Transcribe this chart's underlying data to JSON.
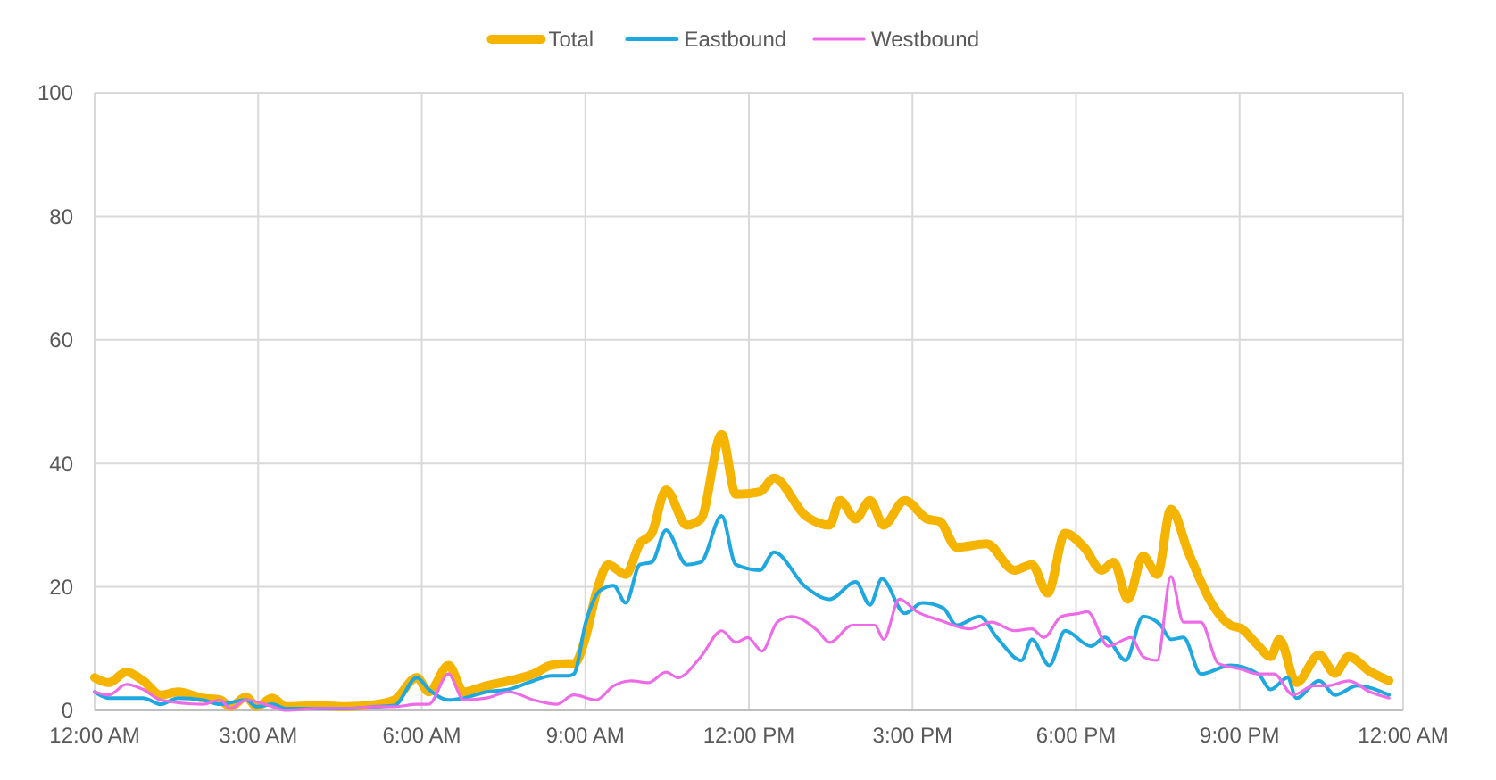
{
  "chart_data": {
    "type": "line",
    "xlim": [
      0,
      24
    ],
    "ylim": [
      0,
      100
    ],
    "yticks": [
      0,
      20,
      40,
      60,
      80,
      100
    ],
    "xticks": [
      {
        "value": 0,
        "label": "12:00 AM"
      },
      {
        "value": 3,
        "label": "3:00 AM"
      },
      {
        "value": 6,
        "label": "6:00 AM"
      },
      {
        "value": 9,
        "label": "9:00 AM"
      },
      {
        "value": 12,
        "label": "12:00 PM"
      },
      {
        "value": 15,
        "label": "3:00 PM"
      },
      {
        "value": 18,
        "label": "6:00 PM"
      },
      {
        "value": 21,
        "label": "9:00 PM"
      },
      {
        "value": 24,
        "label": "12:00 AM"
      }
    ],
    "grid": true,
    "legend": "top",
    "line_style": "solid",
    "series": [
      {
        "name": "Total",
        "color": "#f5b400",
        "x": [
          0,
          0.26,
          0.58,
          0.89,
          1.21,
          1.53,
          1.98,
          2.3,
          2.49,
          2.78,
          2.97,
          3.26,
          3.51,
          4.09,
          4.63,
          5.18,
          5.5,
          5.91,
          6.13,
          6.49,
          6.77,
          7.19,
          7.6,
          8.05,
          8.37,
          8.69,
          8.79,
          9.01,
          9.2,
          9.42,
          9.74,
          10,
          10.22,
          10.48,
          10.86,
          11.12,
          11.5,
          11.76,
          12.2,
          12.46,
          13.04,
          13.48,
          13.67,
          13.96,
          14.22,
          14.47,
          14.86,
          15.27,
          15.5,
          15.81,
          16.36,
          16.87,
          17.19,
          17.48,
          17.8,
          18.15,
          18.47,
          18.69,
          18.95,
          19.23,
          19.49,
          19.74,
          20.06,
          20.51,
          20.83,
          21.02,
          21.34,
          21.57,
          21.73,
          22.04,
          22.46,
          22.75,
          23,
          23.39,
          23.74
        ],
        "values": [
          5.3,
          4.5,
          6.2,
          4.8,
          2.5,
          3,
          2,
          1.7,
          0.6,
          2.2,
          0.6,
          2,
          0.6,
          0.8,
          0.6,
          1,
          1.7,
          5.3,
          3,
          7.3,
          3,
          4,
          4.8,
          5.9,
          7.3,
          7.6,
          7.5,
          12,
          19,
          23.6,
          22,
          27,
          28.7,
          35.7,
          30,
          31,
          44.7,
          35,
          35.4,
          37.6,
          31.5,
          30,
          34,
          31,
          34,
          30,
          34,
          31,
          30.6,
          26.4,
          27,
          22.7,
          23.6,
          19,
          28.7,
          26.4,
          22.7,
          24,
          18,
          25,
          22,
          32.6,
          25.6,
          17,
          13.8,
          13.3,
          10.5,
          8.7,
          11.5,
          4.5,
          9,
          6,
          8.7,
          6.3,
          4.8
        ]
      },
      {
        "name": "Eastbound",
        "color": "#1fa8e0",
        "x": [
          0,
          0.26,
          0.89,
          1.21,
          1.53,
          1.98,
          2.3,
          2.78,
          2.97,
          3.26,
          3.51,
          4.09,
          4.63,
          5.18,
          5.5,
          5.91,
          6.13,
          6.49,
          6.77,
          7.19,
          7.6,
          8.05,
          8.37,
          8.69,
          8.79,
          9.01,
          9.27,
          9.52,
          9.74,
          10,
          10.22,
          10.48,
          10.86,
          11.12,
          11.5,
          11.76,
          12.2,
          12.46,
          13.04,
          13.48,
          13.96,
          14.22,
          14.44,
          14.86,
          15.18,
          15.56,
          15.81,
          16.23,
          16.55,
          17,
          17.19,
          17.51,
          17.8,
          18.27,
          18.53,
          18.91,
          19.23,
          19.55,
          19.74,
          19.97,
          20.29,
          20.83,
          21.34,
          21.57,
          21.88,
          22.04,
          22.46,
          22.75,
          23.16,
          23.74
        ],
        "values": [
          3,
          2,
          2,
          1,
          2,
          1.7,
          1,
          1.7,
          0.6,
          1,
          0.3,
          0.3,
          0.3,
          0.6,
          0.8,
          5.3,
          3.4,
          1.7,
          2,
          3,
          3.4,
          4.8,
          5.6,
          5.6,
          5.9,
          14.3,
          19.4,
          20.2,
          17.4,
          23.6,
          24,
          29.2,
          23.6,
          24,
          31.5,
          23.6,
          22.7,
          25.6,
          20,
          18,
          20.8,
          17.1,
          21.3,
          15.7,
          17.4,
          16.6,
          13.8,
          15.2,
          11.8,
          8.1,
          11.5,
          7.3,
          12.9,
          10.4,
          11.8,
          8.1,
          15.2,
          13.8,
          11.5,
          11.8,
          5.9,
          7.3,
          5.9,
          3.4,
          5.3,
          2,
          4.8,
          2.5,
          4,
          2.5
        ]
      },
      {
        "name": "Westbound",
        "color": "#ee6be8",
        "x": [
          0,
          0.26,
          0.58,
          0.89,
          1.21,
          1.98,
          2.3,
          2.49,
          2.78,
          3.26,
          3.51,
          4.09,
          4.63,
          5.18,
          5.5,
          5.91,
          6.13,
          6.49,
          6.77,
          7.19,
          7.6,
          8.05,
          8.47,
          8.79,
          9.2,
          9.52,
          9.84,
          10.16,
          10.48,
          10.7,
          11.12,
          11.5,
          11.76,
          11.98,
          12.24,
          12.52,
          12.78,
          13.26,
          13.48,
          13.9,
          14.31,
          14.47,
          14.76,
          15.08,
          15.5,
          16.04,
          16.45,
          16.87,
          17.19,
          17.41,
          17.73,
          18.05,
          18.21,
          18.59,
          19.01,
          19.23,
          19.49,
          19.74,
          19.97,
          20.29,
          20.61,
          21.02,
          21.34,
          21.63,
          21.98,
          22.36,
          22.62,
          23,
          23.39,
          23.74
        ],
        "values": [
          3,
          2.5,
          4.2,
          3.4,
          1.7,
          1,
          1.7,
          0.3,
          1.7,
          0.6,
          0,
          0.3,
          0.3,
          0.6,
          0.6,
          1,
          1,
          5.9,
          1.7,
          2,
          3,
          1.7,
          1,
          2.5,
          1.7,
          4,
          4.8,
          4.5,
          6.2,
          5.3,
          8.7,
          12.9,
          11,
          11.8,
          9.6,
          14.3,
          15.2,
          12.9,
          11,
          13.8,
          13.8,
          11.5,
          18,
          16,
          14.6,
          13.2,
          14.3,
          12.9,
          13.2,
          11.8,
          15.2,
          15.7,
          16,
          10.4,
          11.8,
          8.7,
          8.1,
          21.7,
          14.3,
          14.3,
          7.6,
          6.7,
          5.9,
          5.9,
          2.5,
          4,
          4,
          4.8,
          3,
          2
        ]
      }
    ]
  }
}
